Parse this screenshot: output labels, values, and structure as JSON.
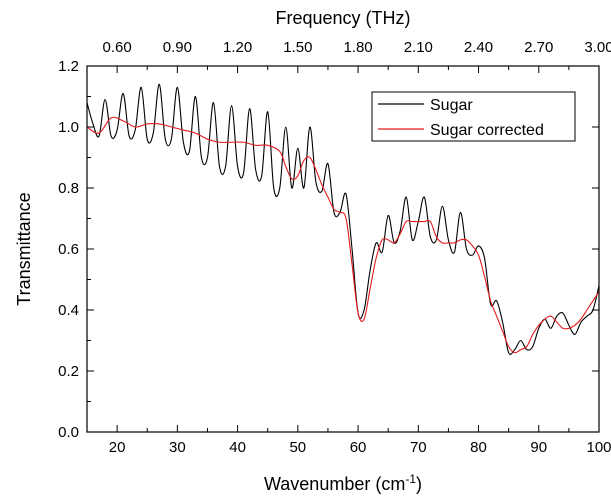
{
  "chart_data": {
    "type": "line",
    "title": "",
    "xlabel": "Wavenumber (cm",
    "xlabel_sup": "-1",
    "xlabel_close": ")",
    "ylabel": "Transmittance",
    "top_xlabel": "Frequency (THz)",
    "xlim": [
      15,
      100
    ],
    "ylim": [
      0.0,
      1.2
    ],
    "x_ticks": [
      "20",
      "30",
      "40",
      "50",
      "60",
      "70",
      "80",
      "90",
      "100"
    ],
    "y_ticks": [
      "0.0",
      "0.2",
      "0.4",
      "0.6",
      "0.8",
      "1.0",
      "1.2"
    ],
    "top_ticks": [
      "0.60",
      "0.90",
      "1.20",
      "1.50",
      "1.80",
      "2.10",
      "2.40",
      "2.70",
      "3.00"
    ],
    "legend_position": "top-right",
    "grid": false,
    "series": [
      {
        "name": "Sugar",
        "color": "#000000",
        "x": [
          15,
          16,
          17,
          18,
          19,
          20,
          21,
          22,
          23,
          24,
          25,
          26,
          27,
          28,
          29,
          30,
          31,
          32,
          33,
          34,
          35,
          36,
          37,
          38,
          39,
          40,
          41,
          42,
          43,
          44,
          45,
          46,
          47,
          48,
          49,
          50,
          51,
          52,
          53,
          54,
          55,
          56,
          57,
          58,
          59,
          60,
          61,
          62,
          63,
          64,
          65,
          66,
          67,
          68,
          69,
          70,
          71,
          72,
          73,
          74,
          75,
          76,
          77,
          78,
          79,
          80,
          81,
          82,
          83,
          84,
          85,
          86,
          87,
          88,
          89,
          90,
          91,
          92,
          93,
          94,
          95,
          96,
          97,
          98,
          99,
          100
        ],
        "y": [
          1.08,
          1.01,
          0.97,
          1.09,
          0.97,
          0.99,
          1.11,
          0.97,
          0.99,
          1.13,
          0.96,
          0.98,
          1.14,
          0.96,
          0.96,
          1.13,
          0.95,
          0.92,
          1.1,
          0.9,
          0.9,
          1.08,
          0.87,
          0.87,
          1.07,
          0.87,
          0.85,
          1.06,
          0.86,
          0.84,
          1.05,
          0.8,
          0.8,
          1.0,
          0.8,
          0.93,
          0.8,
          1.0,
          0.82,
          0.79,
          0.88,
          0.72,
          0.72,
          0.78,
          0.6,
          0.39,
          0.4,
          0.53,
          0.62,
          0.59,
          0.71,
          0.62,
          0.66,
          0.77,
          0.63,
          0.69,
          0.77,
          0.64,
          0.63,
          0.74,
          0.63,
          0.59,
          0.72,
          0.6,
          0.58,
          0.61,
          0.57,
          0.42,
          0.43,
          0.36,
          0.26,
          0.27,
          0.3,
          0.27,
          0.28,
          0.34,
          0.37,
          0.34,
          0.38,
          0.39,
          0.35,
          0.32,
          0.36,
          0.38,
          0.4,
          0.48
        ]
      },
      {
        "name": "Sugar corrected",
        "color": "#e41a1c",
        "x": [
          15,
          17,
          19,
          21,
          23,
          25,
          27,
          29,
          31,
          33,
          35,
          37,
          39,
          41,
          43,
          45,
          47,
          48,
          49,
          50,
          51,
          52,
          53,
          54,
          55,
          56,
          57,
          58,
          59,
          60,
          61,
          62,
          63,
          64,
          65,
          66,
          67,
          68,
          69,
          70,
          71,
          72,
          73,
          74,
          75,
          76,
          77,
          78,
          79,
          80,
          81,
          82,
          83,
          84,
          85,
          86,
          87,
          88,
          89,
          90,
          91,
          92,
          93,
          94,
          95,
          96,
          97,
          98,
          99,
          100
        ],
        "y": [
          1.0,
          0.98,
          1.03,
          1.02,
          1.0,
          1.01,
          1.01,
          1.0,
          0.99,
          0.98,
          0.96,
          0.95,
          0.95,
          0.95,
          0.94,
          0.94,
          0.92,
          0.87,
          0.83,
          0.84,
          0.89,
          0.9,
          0.86,
          0.81,
          0.77,
          0.73,
          0.72,
          0.7,
          0.55,
          0.39,
          0.37,
          0.47,
          0.57,
          0.63,
          0.63,
          0.62,
          0.65,
          0.69,
          0.69,
          0.69,
          0.69,
          0.69,
          0.64,
          0.62,
          0.62,
          0.62,
          0.63,
          0.63,
          0.61,
          0.58,
          0.51,
          0.43,
          0.38,
          0.33,
          0.28,
          0.26,
          0.27,
          0.28,
          0.32,
          0.35,
          0.37,
          0.38,
          0.36,
          0.34,
          0.34,
          0.35,
          0.37,
          0.4,
          0.43,
          0.46
        ]
      }
    ]
  }
}
